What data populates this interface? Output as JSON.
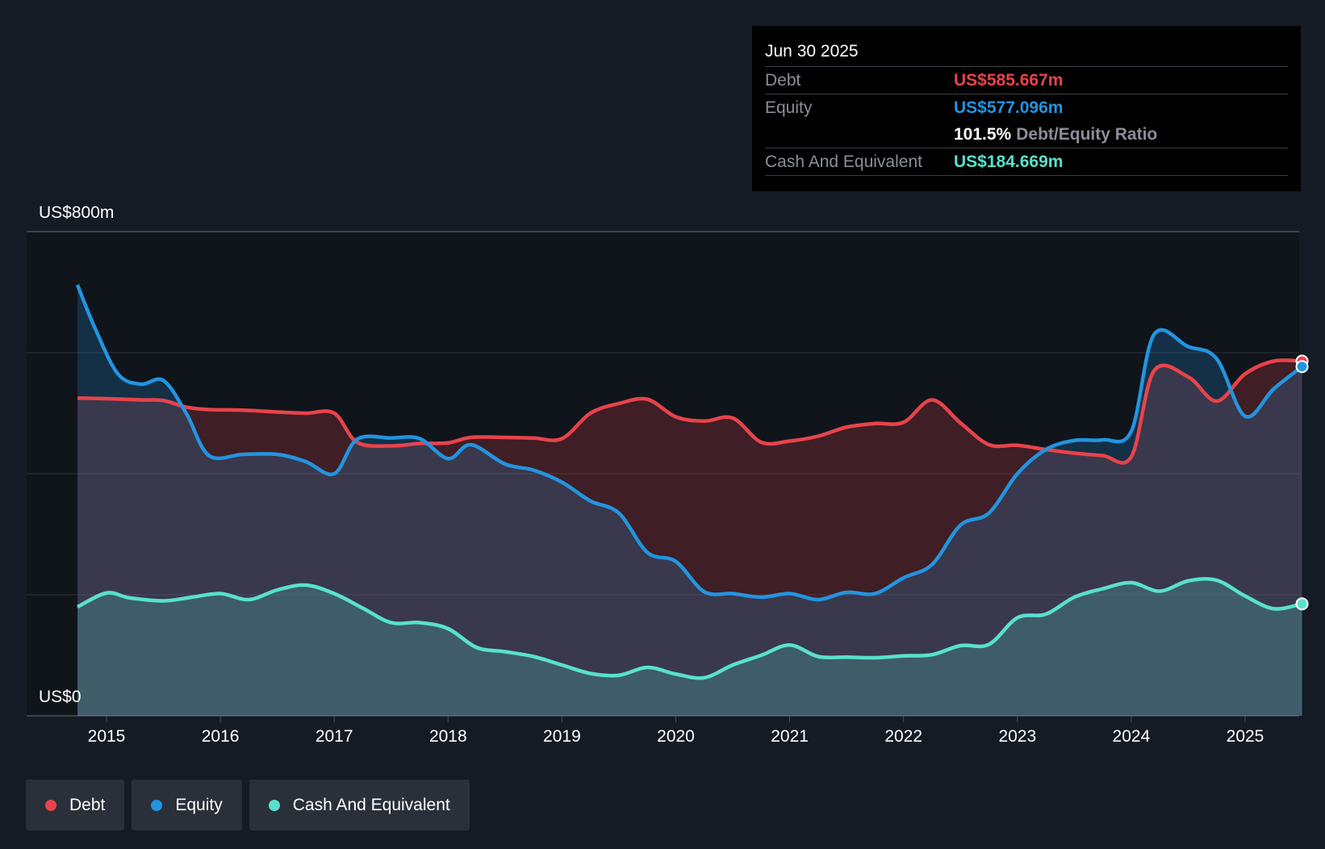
{
  "chart_data": {
    "type": "area",
    "y_axis": {
      "top_label": "US$800m",
      "bottom_label": "US$0",
      "ylim": [
        0,
        800
      ],
      "grid": true
    },
    "x_ticks": [
      "2015",
      "2016",
      "2017",
      "2018",
      "2019",
      "2020",
      "2021",
      "2022",
      "2023",
      "2024",
      "2025"
    ],
    "xlim": [
      2014.74,
      2025.5
    ],
    "series": [
      {
        "name": "Debt",
        "color": "#e8434b",
        "x": [
          2014.74,
          2015.0,
          2015.3,
          2015.5,
          2015.7,
          2015.9,
          2016.2,
          2016.5,
          2016.75,
          2017.0,
          2017.2,
          2017.5,
          2017.75,
          2018.0,
          2018.2,
          2018.5,
          2018.75,
          2019.0,
          2019.25,
          2019.5,
          2019.75,
          2020.0,
          2020.25,
          2020.5,
          2020.75,
          2021.0,
          2021.25,
          2021.5,
          2021.75,
          2022.0,
          2022.25,
          2022.5,
          2022.75,
          2023.0,
          2023.25,
          2023.5,
          2023.75,
          2024.0,
          2024.2,
          2024.5,
          2024.75,
          2025.0,
          2025.25,
          2025.5
        ],
        "values": [
          525,
          524,
          522,
          521,
          510,
          506,
          505,
          502,
          500,
          500,
          452,
          446,
          450,
          451,
          460,
          460,
          459,
          458,
          500,
          516,
          523,
          494,
          487,
          492,
          452,
          454,
          462,
          477,
          483,
          485,
          522,
          484,
          448,
          447,
          440,
          434,
          430,
          428,
          570,
          560,
          520,
          565,
          586,
          586
        ]
      },
      {
        "name": "Equity",
        "color": "#2394df",
        "x": [
          2014.74,
          2014.9,
          2015.1,
          2015.3,
          2015.5,
          2015.7,
          2015.9,
          2016.2,
          2016.5,
          2016.75,
          2017.0,
          2017.2,
          2017.5,
          2017.75,
          2018.0,
          2018.2,
          2018.5,
          2018.75,
          2019.0,
          2019.25,
          2019.5,
          2019.75,
          2020.0,
          2020.25,
          2020.5,
          2020.75,
          2021.0,
          2021.25,
          2021.5,
          2021.75,
          2022.0,
          2022.25,
          2022.5,
          2022.75,
          2023.0,
          2023.25,
          2023.5,
          2023.75,
          2024.0,
          2024.2,
          2024.5,
          2024.75,
          2025.0,
          2025.25,
          2025.5
        ],
        "values": [
          712,
          640,
          565,
          548,
          554,
          500,
          430,
          432,
          432,
          420,
          400,
          457,
          459,
          458,
          425,
          448,
          416,
          406,
          386,
          355,
          335,
          270,
          255,
          205,
          202,
          196,
          202,
          192,
          204,
          202,
          228,
          250,
          315,
          335,
          400,
          440,
          455,
          456,
          470,
          630,
          610,
          590,
          495,
          540,
          577
        ]
      },
      {
        "name": "Cash And Equivalent",
        "color": "#58e1cc",
        "x": [
          2014.74,
          2015.0,
          2015.2,
          2015.5,
          2015.75,
          2016.0,
          2016.25,
          2016.5,
          2016.75,
          2017.0,
          2017.25,
          2017.5,
          2017.75,
          2018.0,
          2018.25,
          2018.5,
          2018.75,
          2019.0,
          2019.25,
          2019.5,
          2019.75,
          2020.0,
          2020.25,
          2020.5,
          2020.75,
          2021.0,
          2021.25,
          2021.5,
          2021.75,
          2022.0,
          2022.25,
          2022.5,
          2022.75,
          2023.0,
          2023.25,
          2023.5,
          2023.75,
          2024.0,
          2024.25,
          2024.5,
          2024.75,
          2025.0,
          2025.25,
          2025.5
        ],
        "values": [
          180,
          203,
          195,
          190,
          196,
          202,
          192,
          208,
          216,
          202,
          178,
          154,
          154,
          144,
          113,
          106,
          98,
          84,
          70,
          67,
          80,
          69,
          63,
          84,
          100,
          117,
          98,
          97,
          96,
          99,
          101,
          116,
          118,
          162,
          168,
          196,
          210,
          220,
          206,
          223,
          224,
          198,
          177,
          185
        ]
      }
    ]
  },
  "tooltip": {
    "date": "Jun 30 2025",
    "debt_label": "Debt",
    "debt_value": "US$585.667m",
    "equity_label": "Equity",
    "equity_value": "US$577.096m",
    "ratio_value": "101.5%",
    "ratio_label": "Debt/Equity Ratio",
    "cash_label": "Cash And Equivalent",
    "cash_value": "US$184.669m"
  },
  "legend": [
    {
      "label": "Debt",
      "color": "#e8434b"
    },
    {
      "label": "Equity",
      "color": "#2394df"
    },
    {
      "label": "Cash And Equivalent",
      "color": "#58e1cc"
    }
  ],
  "colors": {
    "background": "#151b24",
    "plot_background": "#10141b",
    "grid": "#333a45"
  }
}
